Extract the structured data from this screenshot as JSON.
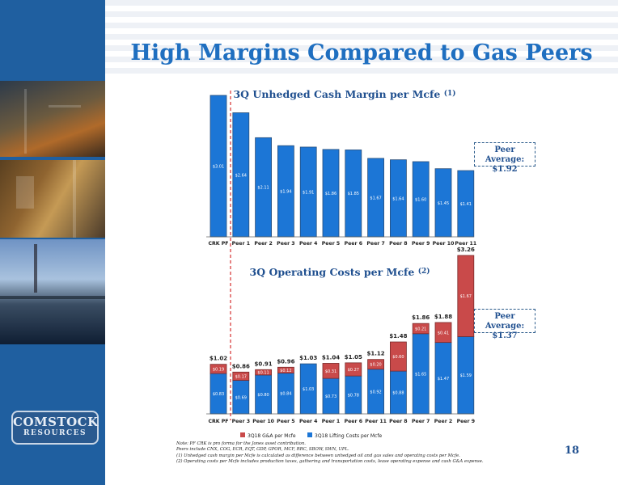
{
  "slide": {
    "title": "High Margins Compared to Gas Peers",
    "page_number": "18",
    "logo_line1": "COMSTOCK",
    "logo_line2": "RESOURCES"
  },
  "colors": {
    "bar_blue": "#1c76d6",
    "bar_red": "#c94a4a",
    "title_blue": "#1f6fc0",
    "divider_red": "#d94040",
    "sidebar_blue": "#1f5fa0"
  },
  "peer_avg_1": {
    "label": "Peer Average:",
    "value": "$1.92"
  },
  "peer_avg_2": {
    "label": "Peer Average:",
    "value": "$1.37"
  },
  "notes": [
    "Note: PF CRK  is pro forma for the Jones asset contribution.",
    "           Peers include CNX, COG, ECR, EQT, GDP, GPOR, MCF, RRC, SBOW, SWN, UPL.",
    "(1)   Unhedged cash margin per Mcfe is calculated as difference between unhedged oil and gas sales  and operating costs per Mcfe.",
    "(2)  Operating costs per Mcfe includes production taxes, gathering and transportation costs, lease operating expense and cash G&A expense."
  ],
  "chart_data": [
    {
      "type": "bar",
      "title": "3Q Unhedged Cash Margin per Mcfe",
      "title_superscript": "(1)",
      "categories": [
        "CRK PF",
        "Peer 1",
        "Peer 2",
        "Peer 3",
        "Peer 4",
        "Peer 5",
        "Peer 6",
        "Peer 7",
        "Peer 8",
        "Peer 9",
        "Peer 10",
        "Peer 11"
      ],
      "values": [
        3.01,
        2.64,
        2.11,
        1.94,
        1.91,
        1.86,
        1.85,
        1.67,
        1.64,
        1.6,
        1.45,
        1.41
      ],
      "labels": [
        "$3.01",
        "$2.64",
        "$2.11",
        "$1.94",
        "$1.91",
        "$1.86",
        "$1.85",
        "$1.67",
        "$1.64",
        "$1.60",
        "$1.45",
        "$1.41"
      ],
      "peer_average": 1.92,
      "ylim": [
        0,
        3.1
      ],
      "grid": false
    },
    {
      "type": "bar",
      "stacked": true,
      "title": "3Q Operating Costs per Mcfe",
      "title_superscript": "(2)",
      "categories": [
        "CRK PF",
        "Peer 3",
        "Peer 10",
        "Peer 5",
        "Peer 4",
        "Peer 1",
        "Peer 6",
        "Peer 11",
        "Peer 8",
        "Peer 7",
        "Peer 2",
        "Peer 9"
      ],
      "series": [
        {
          "name": "3Q18 Lifting Costs per Mcfe",
          "values": [
            0.83,
            0.69,
            0.8,
            0.84,
            1.03,
            0.73,
            0.78,
            0.92,
            0.88,
            1.65,
            1.47,
            1.59
          ],
          "labels": [
            "$0.83",
            "$0.69",
            "$0.80",
            "$0.84",
            "$1.03",
            "$0.73",
            "$0.78",
            "$0.92",
            "$0.88",
            "$1.65",
            "$1.47",
            "$1.59"
          ]
        },
        {
          "name": "3Q18 G&A per Mcfe",
          "values": [
            0.19,
            0.17,
            0.11,
            0.12,
            0,
            0.31,
            0.27,
            0.2,
            0.6,
            0.21,
            0.41,
            1.67
          ],
          "labels": [
            "$0.19",
            "$0.17",
            "$0.11",
            "$0.12",
            "",
            "$0.31",
            "$0.27",
            "$0.20",
            "$0.60",
            "$0.21",
            "$0.41",
            "$1.67"
          ]
        }
      ],
      "totals": [
        "$1.02",
        "$0.86",
        "$0.91",
        "$0.96",
        "$1.03",
        "$1.04",
        "$1.05",
        "$1.12",
        "$1.48",
        "$1.86",
        "$1.88",
        "$3.26"
      ],
      "peer_average": 1.37,
      "ylim": [
        0,
        3.3
      ],
      "legend": "bottom",
      "grid": false
    }
  ]
}
